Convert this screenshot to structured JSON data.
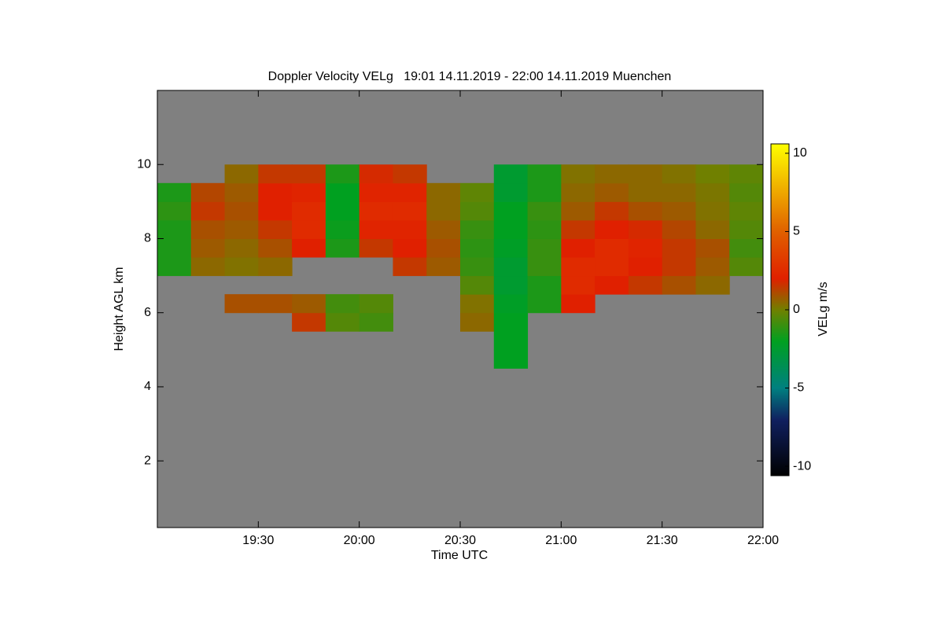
{
  "chart_data": {
    "type": "heatmap",
    "title": "Doppler Velocity VELg   19:01 14.11.2019 - 22:00 14.11.2019 Muenchen",
    "x_label": "Time UTC",
    "y_label": "Height AGL km",
    "colorbar_label": "VELg m/s",
    "background": "#808080",
    "xlim": [
      "19:00",
      "22:00"
    ],
    "xticks": [
      "19:30",
      "20:00",
      "20:30",
      "21:00",
      "21:30",
      "22:00"
    ],
    "ylim": [
      0.2,
      12
    ],
    "yticks": [
      2,
      4,
      6,
      8,
      10
    ],
    "clim": [
      -10.6,
      10.6
    ],
    "cticks": [
      -10,
      -5,
      0,
      5,
      10
    ],
    "colormap": [
      {
        "value": -10.6,
        "color": "#000000"
      },
      {
        "value": -7,
        "color": "#102060"
      },
      {
        "value": -5,
        "color": "#008080"
      },
      {
        "value": -2,
        "color": "#00a020"
      },
      {
        "value": 0,
        "color": "#708000"
      },
      {
        "value": 2,
        "color": "#e02000"
      },
      {
        "value": 5,
        "color": "#e06000"
      },
      {
        "value": 10.6,
        "color": "#ffff00"
      }
    ],
    "x": [
      "19:00",
      "19:10",
      "19:20",
      "19:30",
      "19:40",
      "19:50",
      "20:00",
      "20:10",
      "20:20",
      "20:30",
      "20:40",
      "20:50",
      "21:00",
      "21:10",
      "21:20",
      "21:30",
      "21:40",
      "21:50",
      "22:00"
    ],
    "y": [
      4.5,
      5,
      5.5,
      6,
      6.5,
      7,
      7.5,
      8,
      8.5,
      9,
      9.5,
      10
    ],
    "values": [
      [
        null,
        null,
        null,
        null,
        null,
        null,
        null,
        null,
        null,
        null,
        -2,
        null,
        null,
        null,
        null,
        null,
        null,
        null
      ],
      [
        null,
        null,
        null,
        null,
        null,
        null,
        null,
        null,
        null,
        null,
        -2,
        null,
        null,
        null,
        null,
        null,
        null,
        null
      ],
      [
        null,
        null,
        null,
        null,
        1.5,
        -0.5,
        -0.8,
        null,
        null,
        0.5,
        -2,
        null,
        null,
        null,
        null,
        null,
        null,
        null
      ],
      [
        null,
        null,
        1,
        1,
        0.8,
        -0.8,
        -0.5,
        null,
        null,
        0.3,
        -2.2,
        -1.5,
        2,
        null,
        null,
        null,
        null,
        null
      ],
      [
        null,
        null,
        null,
        null,
        null,
        null,
        null,
        null,
        null,
        -0.5,
        -2.5,
        -1.5,
        2.5,
        2,
        1.5,
        1,
        0.5,
        null
      ],
      [
        -1.5,
        0.5,
        0.3,
        0.5,
        null,
        null,
        null,
        1.5,
        0.8,
        -1,
        -2.5,
        -1,
        2.5,
        2.5,
        2,
        1.5,
        0.8,
        -0.5
      ],
      [
        -1.5,
        0.8,
        0.5,
        1,
        2,
        -1.5,
        1.5,
        2,
        1,
        -1.2,
        -2.2,
        -1,
        2,
        2.5,
        2.2,
        1.5,
        1,
        -0.8
      ],
      [
        -1.5,
        1,
        0.8,
        1.5,
        2.5,
        -1.8,
        2.2,
        2.2,
        0.8,
        -1,
        -2,
        -1.2,
        1.5,
        2,
        1.8,
        1.2,
        0.5,
        -0.5
      ],
      [
        -1.2,
        1.5,
        1,
        2,
        2.5,
        -2,
        2.5,
        2.5,
        0.5,
        -0.5,
        -2,
        -1,
        0.8,
        1.5,
        1,
        0.8,
        0.3,
        -0.3
      ],
      [
        -1.5,
        1.2,
        0.8,
        2,
        2.2,
        -2,
        2.2,
        2.2,
        0.5,
        -0.3,
        -2.5,
        -1.5,
        0.5,
        0.8,
        0.5,
        0.5,
        0.2,
        -0.5
      ],
      [
        null,
        null,
        0.5,
        1.5,
        1.5,
        -1.5,
        1.8,
        1.5,
        null,
        null,
        -2.5,
        -1.5,
        0.3,
        0.5,
        0.5,
        0.3,
        0,
        -0.3
      ]
    ]
  }
}
